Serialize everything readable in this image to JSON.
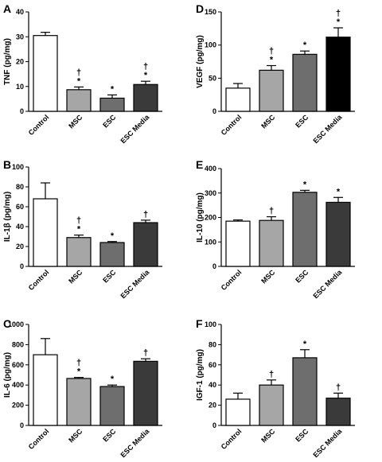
{
  "chart_data": [
    {
      "panel": "A",
      "type": "bar",
      "ylabel": "TNF (pg/mg)",
      "ylim": [
        0,
        40
      ],
      "yticks": [
        0,
        10,
        20,
        30,
        40
      ],
      "categories": [
        "Control",
        "MSC",
        "ESC",
        "ESC Media"
      ],
      "values": [
        30.5,
        8.7,
        5.3,
        10.8
      ],
      "errors": [
        1.3,
        1.1,
        1.3,
        1.3
      ],
      "colors": [
        "#ffffff",
        "#a6a6a6",
        "#6e6e6e",
        "#3a3a3a"
      ],
      "annotations": [
        "",
        "†\n*",
        "*",
        "†\n*"
      ]
    },
    {
      "panel": "D",
      "type": "bar",
      "ylabel": "VEGF (pg/mg)",
      "ylim": [
        0,
        150
      ],
      "yticks": [
        0,
        50,
        100,
        150
      ],
      "categories": [
        "Control",
        "MSC",
        "ESC",
        "ESC Media"
      ],
      "values": [
        35,
        62,
        86,
        112
      ],
      "errors": [
        7,
        7,
        5,
        14
      ],
      "colors": [
        "#ffffff",
        "#a6a6a6",
        "#6e6e6e",
        "#000000"
      ],
      "annotations": [
        "",
        "†\n*",
        "*",
        "†\n*"
      ]
    },
    {
      "panel": "B",
      "type": "bar",
      "ylabel": "IL-1β (pg/mg)",
      "ylim": [
        0,
        100
      ],
      "yticks": [
        0,
        20,
        40,
        60,
        80,
        100
      ],
      "categories": [
        "Control",
        "MSC",
        "ESC",
        "ESC Media"
      ],
      "values": [
        68,
        29,
        24,
        44
      ],
      "errors": [
        16,
        2.5,
        1,
        2.5
      ],
      "colors": [
        "#ffffff",
        "#a6a6a6",
        "#6e6e6e",
        "#3a3a3a"
      ],
      "annotations": [
        "",
        "†\n*",
        "*",
        "†"
      ]
    },
    {
      "panel": "E",
      "type": "bar",
      "ylabel": "IL-10 (pg/mg)",
      "ylim": [
        0,
        400
      ],
      "yticks": [
        0,
        100,
        200,
        300,
        400
      ],
      "categories": [
        "Control",
        "MSC",
        "ESC",
        "ESC Media"
      ],
      "values": [
        185,
        188,
        303,
        262
      ],
      "errors": [
        5,
        15,
        8,
        20
      ],
      "colors": [
        "#ffffff",
        "#a6a6a6",
        "#6e6e6e",
        "#3a3a3a"
      ],
      "annotations": [
        "",
        "†",
        "*",
        "*"
      ]
    },
    {
      "panel": "C",
      "type": "bar",
      "ylabel": "IL-6 (pg/mg)",
      "ylim": [
        0,
        1000
      ],
      "yticks": [
        0,
        200,
        400,
        600,
        800,
        1000
      ],
      "categories": [
        "Control",
        "MSC",
        "ESC",
        "ESC Media"
      ],
      "values": [
        700,
        465,
        385,
        635
      ],
      "errors": [
        160,
        10,
        15,
        25
      ],
      "colors": [
        "#ffffff",
        "#a6a6a6",
        "#6e6e6e",
        "#3a3a3a"
      ],
      "annotations": [
        "",
        "†\n*",
        "*",
        "†"
      ]
    },
    {
      "panel": "F",
      "type": "bar",
      "ylabel": "IGF-1 (pg/mg)",
      "ylim": [
        0,
        100
      ],
      "yticks": [
        0,
        20,
        40,
        60,
        80,
        100
      ],
      "categories": [
        "Control",
        "MSC",
        "ESC",
        "ESC Media"
      ],
      "values": [
        26,
        40,
        67,
        27
      ],
      "errors": [
        6,
        5,
        8,
        5
      ],
      "colors": [
        "#ffffff",
        "#a6a6a6",
        "#6e6e6e",
        "#3a3a3a"
      ],
      "annotations": [
        "",
        "†",
        "*",
        "†"
      ]
    }
  ]
}
